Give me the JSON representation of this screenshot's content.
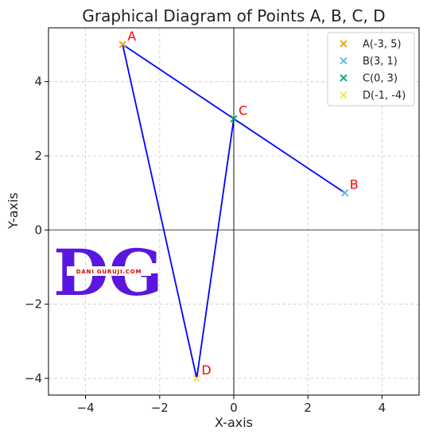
{
  "chart_data": {
    "type": "scatter",
    "title": "Graphical Diagram of Points A, B, C, D",
    "xlabel": "X-axis",
    "ylabel": "Y-axis",
    "xlim": [
      -5,
      5
    ],
    "ylim": [
      -4.45,
      5.45
    ],
    "xticks": [
      -4,
      -2,
      0,
      2,
      4
    ],
    "yticks": [
      -4,
      -2,
      0,
      2,
      4
    ],
    "xtick_labels": [
      "−4",
      "−2",
      "0",
      "2",
      "4"
    ],
    "ytick_labels": [
      "−4",
      "−2",
      "0",
      "2",
      "4"
    ],
    "grid": true,
    "legend_position": "top-right",
    "points": [
      {
        "label": "A",
        "legend": "A(-3, 5)",
        "x": -3,
        "y": 5,
        "color": "#e69f00"
      },
      {
        "label": "B",
        "legend": "B(3, 1)",
        "x": 3,
        "y": 1,
        "color": "#56b4e9"
      },
      {
        "label": "C",
        "legend": "C(0, 3)",
        "x": 0,
        "y": 3,
        "color": "#009e73"
      },
      {
        "label": "D",
        "legend": "D(-1, -4)",
        "x": -1,
        "y": -4,
        "color": "#f0e442"
      }
    ],
    "connecting_path": [
      "A",
      "D",
      "C",
      "B",
      "A"
    ],
    "line_color": "#0000ff",
    "point_label_color": "#ff0000"
  },
  "watermark": {
    "letters": "DG",
    "text": "DANI GURUJI.COM",
    "color": "#5a16e0",
    "text_color": "#e00000"
  }
}
